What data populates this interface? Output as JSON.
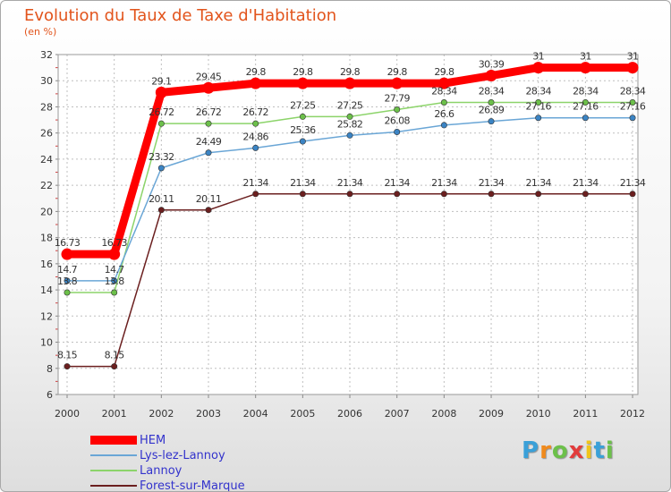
{
  "title": "Evolution du Taux de Taxe d'Habitation",
  "subtitle": "(en %)",
  "logo": {
    "text": "Proxiti",
    "letters": [
      {
        "ch": "P",
        "color": "#3aa0d8"
      },
      {
        "ch": "r",
        "color": "#f08a1c"
      },
      {
        "ch": "o",
        "color": "#6cc04a"
      },
      {
        "ch": "x",
        "color": "#e23b3b"
      },
      {
        "ch": "i",
        "color": "#f0c419"
      },
      {
        "ch": "t",
        "color": "#3aa0d8"
      },
      {
        "ch": "i",
        "color": "#6cc04a"
      }
    ]
  },
  "chart_data": {
    "type": "line",
    "x": [
      "2000",
      "2001",
      "2002",
      "2003",
      "2004",
      "2005",
      "2006",
      "2007",
      "2008",
      "2009",
      "2010",
      "2011",
      "2012"
    ],
    "ylim": [
      6,
      32
    ],
    "yticks": [
      6,
      8,
      10,
      12,
      14,
      16,
      18,
      20,
      22,
      24,
      26,
      28,
      30,
      32
    ],
    "grid": true,
    "legend_position": "bottom-left",
    "series": [
      {
        "name": "Forest-sur-Marque",
        "color": "#6b1f1f",
        "marker": "#6b1f1f",
        "values": [
          8.15,
          8.15,
          20.11,
          20.11,
          21.34,
          21.34,
          21.34,
          21.34,
          21.34,
          21.34,
          21.34,
          21.34,
          21.34
        ],
        "labels": [
          "8.15",
          "8.15",
          "20.11",
          "20.11",
          "21.34",
          "21.34",
          "21.34",
          "21.34",
          "21.34",
          "21.34",
          "21.34",
          "21.34",
          "21.34"
        ]
      },
      {
        "name": "Lannoy",
        "color": "#8cd46a",
        "marker": "#6cc04a",
        "values": [
          13.8,
          13.8,
          26.72,
          26.72,
          26.72,
          27.25,
          27.25,
          27.79,
          28.34,
          28.34,
          28.34,
          28.34,
          28.34
        ],
        "labels": [
          "13.8",
          "13.8",
          "26.72",
          "26.72",
          "26.72",
          "27.25",
          "27.25",
          "27.79",
          "28.34",
          "28.34",
          "28.34",
          "28.34",
          "28.34"
        ]
      },
      {
        "name": "Lys-lez-Lannoy",
        "color": "#6aa6d6",
        "marker": "#3b84c4",
        "values": [
          14.7,
          14.7,
          23.32,
          24.49,
          24.86,
          25.36,
          25.82,
          26.08,
          26.6,
          26.89,
          27.16,
          27.16,
          27.16
        ],
        "labels": [
          "14.7",
          "14.7",
          "23.32",
          "24.49",
          "24.86",
          "25.36",
          "25.82",
          "26.08",
          "26.6",
          "26.89",
          "27.16",
          "27.16",
          "27.16"
        ]
      },
      {
        "name": "HEM",
        "color": "#ff0000",
        "marker": "#ff0000",
        "values": [
          16.73,
          16.73,
          29.1,
          29.45,
          29.8,
          29.8,
          29.8,
          29.8,
          29.8,
          30.39,
          31,
          31,
          31
        ],
        "labels": [
          "16.73",
          "16.73",
          "29.1",
          "29.45",
          "29.8",
          "29.8",
          "29.8",
          "29.8",
          "29.8",
          "30.39",
          "31",
          "31",
          "31"
        ]
      }
    ],
    "legend_order": [
      "HEM",
      "Lys-lez-Lannoy",
      "Lannoy",
      "Forest-sur-Marque"
    ]
  }
}
